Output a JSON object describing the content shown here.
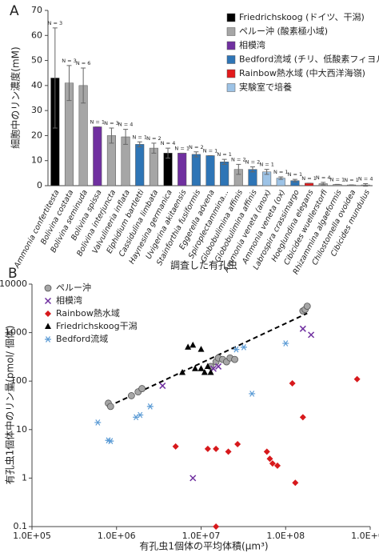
{
  "chart_data": [
    {
      "type": "bar",
      "panel": "A",
      "ylabel": "細胞中のリン濃度(mM)",
      "xlabel": "調査した有孔虫",
      "categories": [
        "Ammonia confertitesta",
        "Bolivina costata",
        "Bolivina seminuda",
        "Bolivina spissa",
        "Bolivina interjuncta",
        "Valvulineria inflata",
        "Elphidium bartletti",
        "Cassidulina limbata",
        "Haynesina germanica",
        "Uvigerina akitaensis",
        "Stainforthia fusiformis",
        "Eggerella advena",
        "Spiroplectammina...",
        "Globobulimina affinis",
        "Globobulimina affinis",
        "Ammonia veneta (anox)",
        "Ammonia veneta (ox)",
        "Labrospira crassimargo",
        "Hoeglundina elegans",
        "Cibicides wuellerstorfi",
        "Rhizammina algaeformis",
        "Chilostomella ovoidea",
        "Cibicides mundulus"
      ],
      "values": [
        43,
        41,
        40,
        23.5,
        20,
        19.5,
        16.5,
        15,
        13,
        13,
        12.5,
        12,
        9.5,
        6.5,
        6.5,
        5.5,
        3,
        2,
        1,
        0.8,
        0.5,
        0.3,
        0.3
      ],
      "errors": [
        20,
        7,
        7,
        0,
        3,
        3,
        1,
        2,
        2,
        0,
        1,
        0,
        1,
        2,
        1,
        1,
        0.5,
        0.5,
        0,
        0.5,
        0,
        0,
        0.5
      ],
      "n_labels": [
        "N = 3",
        "N = 3",
        "N = 6",
        "N = 1",
        "N = 3",
        "N = 4",
        "N = 1",
        "N = 2",
        "N = 4",
        "N = 1",
        "N = 2",
        "N = 1",
        "N = 1",
        "N = 2",
        "N = 2",
        "N = 1",
        "N = 1",
        "N = 1",
        "N = 1",
        "N = 4",
        "N = 1",
        "N = 1",
        "N = 4"
      ],
      "colors": [
        "#000000",
        "#a6a6a6",
        "#a6a6a6",
        "#7030a0",
        "#a6a6a6",
        "#a6a6a6",
        "#2e75b6",
        "#a6a6a6",
        "#000000",
        "#7030a0",
        "#2e75b6",
        "#2e75b6",
        "#2e75b6",
        "#a6a6a6",
        "#2e75b6",
        "#9dc3e6",
        "#9dc3e6",
        "#2e75b6",
        "#e31a1c",
        "#a6a6a6",
        "#a6a6a6",
        "#a6a6a6",
        "#a6a6a6"
      ],
      "legend": [
        {
          "label": "Friedrichskoog (ドイツ、干潟)",
          "color": "#000000"
        },
        {
          "label": "ペルー沖 (酸素極小域)",
          "color": "#a6a6a6"
        },
        {
          "label": "相模湾",
          "color": "#7030a0"
        },
        {
          "label": "Bedford流域 (チリ、低酸素フィヨルド)",
          "color": "#2e75b6"
        },
        {
          "label": "Rainbow熱水域 (中大西洋海嶺)",
          "color": "#e31a1c"
        },
        {
          "label": "実験室で培養",
          "color": "#9dc3e6"
        }
      ],
      "ylim": [
        0,
        70
      ],
      "yticks": [
        0,
        10,
        20,
        30,
        40,
        50,
        60,
        70
      ]
    },
    {
      "type": "scatter",
      "panel": "B",
      "xlabel": "有孔虫1個体の平均体積(μm³)",
      "ylabel": "有孔虫1個体中のリン量(pmol/ 個体)",
      "xscale": "log",
      "yscale": "log",
      "xlim": [
        100000,
        1000000000
      ],
      "ylim": [
        0.1,
        10000
      ],
      "xticks": [
        {
          "value": 100000,
          "label": "1.0E+05"
        },
        {
          "value": 1000000,
          "label": "1.0E+06"
        },
        {
          "value": 10000000,
          "label": "1.0E+07"
        },
        {
          "value": 100000000,
          "label": "1.0E+08"
        },
        {
          "value": 1000000000,
          "label": "1.0E+09"
        }
      ],
      "yticks": [
        0.1,
        1,
        10,
        100,
        1000,
        10000
      ],
      "series": [
        {
          "name": "ペルー沖",
          "color": "#a6a6a6",
          "marker": "circle",
          "x": [
            800000,
            850000,
            1500000,
            1800000,
            2000000,
            13000000,
            15000000,
            16000000,
            18000000,
            20000000,
            22000000,
            25000000,
            160000000,
            170000000,
            180000000
          ],
          "y": [
            35,
            30,
            50,
            60,
            70,
            200,
            250,
            300,
            280,
            250,
            300,
            280,
            2800,
            3000,
            3500
          ]
        },
        {
          "name": "相模湾",
          "color": "#7030a0",
          "marker": "x",
          "x": [
            3500000,
            8000000,
            14000000,
            16000000,
            160000000,
            200000000
          ],
          "y": [
            80,
            1,
            180,
            200,
            1200,
            900
          ]
        },
        {
          "name": "Rainbow熱水域",
          "color": "#d7191c",
          "marker": "diamond",
          "x": [
            5000000,
            12000000,
            15000000,
            27000000,
            21000000,
            15000000,
            60000000,
            65000000,
            70000000,
            80000000,
            130000000,
            120000000,
            160000000,
            700000000
          ],
          "y": [
            4.5,
            4,
            4,
            5,
            3.5,
            0.1,
            3.5,
            2.5,
            2,
            1.8,
            0.8,
            90,
            18,
            110
          ]
        },
        {
          "name": "Friedrichskoog干潟",
          "color": "#000000",
          "marker": "triangle",
          "x": [
            6000000,
            7000000,
            8000000,
            8500000,
            10000000,
            10000000,
            11000000,
            12000000,
            13000000
          ],
          "y": [
            150,
            500,
            550,
            180,
            180,
            450,
            150,
            200,
            150
          ]
        },
        {
          "name": "Bedford流域",
          "color": "#5b9bd5",
          "marker": "asterisk",
          "x": [
            600000,
            800000,
            850000,
            1700000,
            1900000,
            2500000,
            26000000,
            32000000,
            40000000,
            100000000
          ],
          "y": [
            14,
            6,
            5.8,
            18,
            20,
            30,
            450,
            500,
            55,
            600
          ]
        }
      ],
      "trendline": {
        "x": [
          800000,
          180000000
        ],
        "y": [
          30,
          2500
        ]
      }
    }
  ]
}
